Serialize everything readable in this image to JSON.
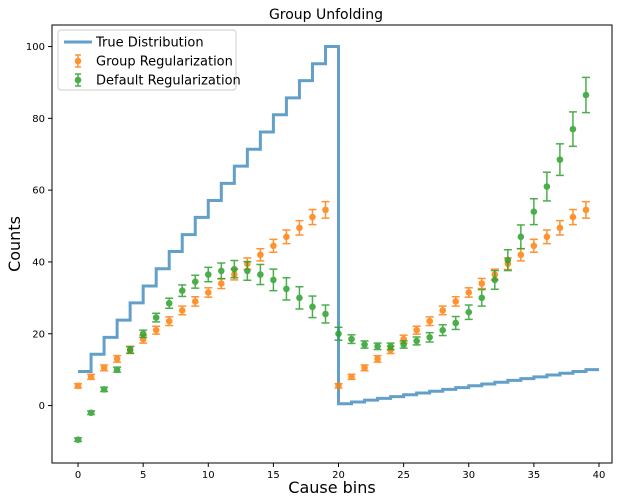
{
  "chart_data": {
    "type": "scatter",
    "title": "Group Unfolding",
    "xlabel": "Cause bins",
    "ylabel": "Counts",
    "xlim": [
      -2,
      41
    ],
    "ylim": [
      -16,
      106
    ],
    "xticks": [
      0,
      5,
      10,
      15,
      20,
      25,
      30,
      35,
      40
    ],
    "yticks": [
      0,
      20,
      40,
      60,
      80,
      100
    ],
    "legend_position": "top-left",
    "grid": false,
    "series": [
      {
        "name": "True Distribution",
        "kind": "step",
        "color": "#1f77b4",
        "x": [
          0,
          1,
          2,
          3,
          4,
          5,
          6,
          7,
          8,
          9,
          10,
          11,
          12,
          13,
          14,
          15,
          16,
          17,
          18,
          19,
          20,
          21,
          22,
          23,
          24,
          25,
          26,
          27,
          28,
          29,
          30,
          31,
          32,
          33,
          34,
          35,
          36,
          37,
          38,
          39
        ],
        "y": [
          9.5,
          14.3,
          19.0,
          23.8,
          28.6,
          33.3,
          38.1,
          42.9,
          47.6,
          52.4,
          57.1,
          61.9,
          66.7,
          71.4,
          76.2,
          81.0,
          85.7,
          90.5,
          95.2,
          100.0,
          0.5,
          1.0,
          1.5,
          2.0,
          2.5,
          3.0,
          3.5,
          4.0,
          4.5,
          5.0,
          5.5,
          6.0,
          6.5,
          7.0,
          7.5,
          8.0,
          8.5,
          9.0,
          9.5,
          10.0
        ]
      },
      {
        "name": "Group Regularization",
        "kind": "errorbar",
        "color": "#ff7f0e",
        "x": [
          0,
          1,
          2,
          3,
          4,
          5,
          6,
          7,
          8,
          9,
          10,
          11,
          12,
          13,
          14,
          15,
          16,
          17,
          18,
          19,
          20,
          21,
          22,
          23,
          24,
          25,
          26,
          27,
          28,
          29,
          30,
          31,
          32,
          33,
          34,
          35,
          36,
          37,
          38,
          39
        ],
        "y": [
          5.5,
          8.0,
          10.5,
          13.0,
          15.5,
          18.5,
          21.0,
          23.5,
          26.5,
          29.0,
          31.5,
          34.0,
          36.5,
          39.5,
          42.0,
          44.5,
          47.0,
          49.5,
          52.5,
          54.5,
          5.5,
          8.0,
          10.5,
          13.0,
          15.5,
          18.5,
          21.0,
          23.5,
          26.5,
          29.0,
          31.5,
          34.0,
          36.5,
          39.5,
          42.0,
          44.5,
          47.0,
          49.5,
          52.5,
          54.5
        ],
        "yerr": [
          0.6,
          0.7,
          0.8,
          0.9,
          1.0,
          1.1,
          1.1,
          1.2,
          1.2,
          1.3,
          1.3,
          1.4,
          1.5,
          1.6,
          1.7,
          1.8,
          1.9,
          2.0,
          2.1,
          2.3,
          0.6,
          0.7,
          0.8,
          0.9,
          1.0,
          1.1,
          1.1,
          1.2,
          1.2,
          1.3,
          1.3,
          1.4,
          1.5,
          1.6,
          1.7,
          1.8,
          1.9,
          2.0,
          2.1,
          2.3
        ]
      },
      {
        "name": "Default Regularization",
        "kind": "errorbar",
        "color": "#2ca02c",
        "x": [
          0,
          1,
          2,
          3,
          4,
          5,
          6,
          7,
          8,
          9,
          10,
          11,
          12,
          13,
          14,
          15,
          16,
          17,
          18,
          19,
          20,
          21,
          22,
          23,
          24,
          25,
          26,
          27,
          28,
          29,
          30,
          31,
          32,
          33,
          34,
          35,
          36,
          37,
          38,
          39
        ],
        "y": [
          -9.5,
          -2.0,
          4.5,
          10.0,
          15.5,
          20.0,
          24.5,
          28.5,
          32.0,
          34.5,
          36.5,
          37.5,
          38.0,
          37.5,
          36.5,
          35.0,
          32.5,
          30.0,
          27.5,
          25.5,
          20.0,
          18.5,
          17.0,
          16.5,
          16.5,
          17.0,
          18.0,
          19.0,
          21.0,
          23.0,
          26.0,
          30.0,
          35.0,
          40.5,
          47.0,
          54.0,
          61.0,
          68.5,
          77.0,
          86.5
        ],
        "yerr": [
          0.5,
          0.5,
          0.6,
          0.7,
          0.9,
          1.0,
          1.2,
          1.4,
          1.6,
          1.8,
          2.0,
          2.2,
          2.4,
          2.6,
          2.8,
          3.0,
          3.1,
          3.1,
          3.0,
          2.5,
          1.8,
          1.2,
          1.0,
          0.9,
          0.9,
          1.0,
          1.1,
          1.3,
          1.5,
          1.8,
          2.0,
          2.3,
          2.6,
          2.9,
          3.3,
          3.6,
          4.0,
          4.4,
          4.8,
          4.9
        ]
      }
    ]
  }
}
